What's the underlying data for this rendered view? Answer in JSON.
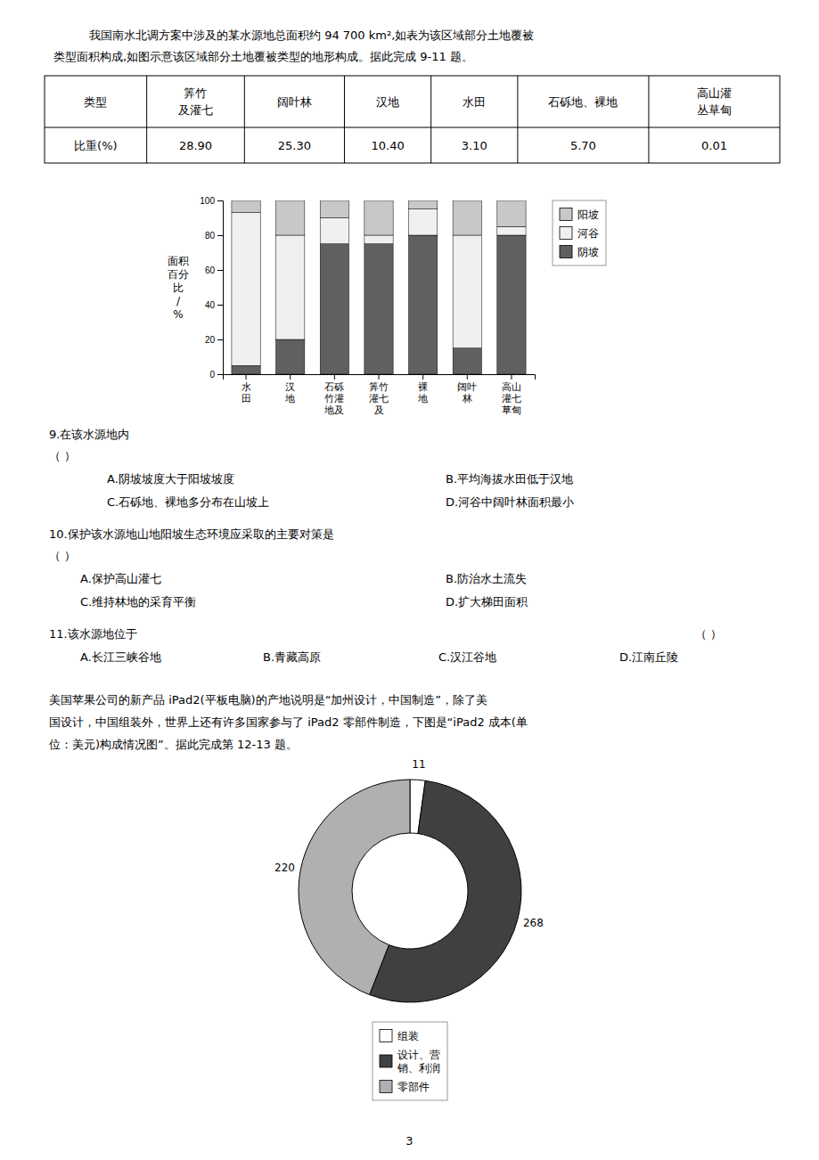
{
  "chart_data": [
    {
      "type": "table",
      "annotations": [
        "我国南水北调方案中涉及的某水源地总面积约 94 700 km²,如表为该区域部分土地覆被",
        "类型面积构成,如图示意该区域部分土地覆被类型的地形构成。据此完成 9-11 题。"
      ],
      "xlabel": "类型",
      "categories": [
        "筭竹\n及灌七",
        "阔叶林",
        "汉地",
        "水田",
        "石砾地、裸地",
        "高山灌\n丛草甸"
      ],
      "series": [
        {
          "name": "比重(%)",
          "values": [
            28.9,
            25.3,
            10.4,
            3.1,
            5.7,
            0.01
          ],
          "value_labels": [
            "28.90",
            "25.30",
            "10.40",
            "3.10",
            "5.70",
            "0.01"
          ]
        }
      ],
      "data_labels": true
    },
    {
      "type": "bar",
      "stacked": true,
      "categories": [
        "水\n田",
        "汉\n地",
        "石砾\n竹灌\n地及",
        "筭竹\n灌七\n及",
        "裸\n地",
        "阔叶\n林",
        "高山\n灌七\n草甸"
      ],
      "ylabel": "面积\n百分\n比\n/\n%",
      "ylim": [
        0,
        100
      ],
      "yticks": [
        0,
        20,
        40,
        60,
        80,
        100
      ],
      "grid": false,
      "legend": "right",
      "series": [
        {
          "name": "阴坡",
          "color": "#606060",
          "values": [
            5,
            20,
            75,
            75,
            80,
            15,
            80
          ]
        },
        {
          "name": "河谷",
          "color": "#f0f0f0",
          "values": [
            88,
            60,
            15,
            5,
            15,
            65,
            5
          ]
        },
        {
          "name": "阳坡",
          "color": "#c8c8c8",
          "values": [
            7,
            20,
            10,
            20,
            5,
            20,
            15
          ]
        }
      ],
      "annotations": [
        "9.在该水源地内",
        "（    ）",
        "A.阴坡坡度大于阳坡坡度",
        "B.平均海拔水田低于汉地",
        "C.石砾地、裸地多分布在山坡上",
        "D.河谷中阔叶林面积最小",
        "10.保护该水源地山地阳坡生态环境应采取的主要对策是",
        "（    ）",
        "A.保护高山灌七",
        "B.防治水土流失",
        "C.维持林地的采育平衡",
        "D.扩大梯田面积",
        "11.该水源地位于",
        "（    ）",
        "A.长江三峡谷地",
        "B.青藏高原",
        "C.汉江谷地",
        "D.江南丘陵"
      ]
    },
    {
      "type": "pie",
      "categories": [
        "组装",
        "设计、营\n销、利润",
        "零部件"
      ],
      "values": [
        11,
        268,
        220
      ],
      "colors": [
        "#ffffff",
        "#404040",
        "#b0b0b0"
      ],
      "data_labels": true,
      "legend": "bottom",
      "annotations": [
        "美国苹果公司的新产品 iPad2(平板电脑)的产地说明是“加州设计，中国制造”，除了美",
        "国设计，中国组装外，世界上还有许多国家参与了 iPad2 零部件制造，下图是“iPad2 成本(单",
        "位：美元)构成情况图”。据此完成第 12-13 题。",
        "3"
      ]
    }
  ]
}
